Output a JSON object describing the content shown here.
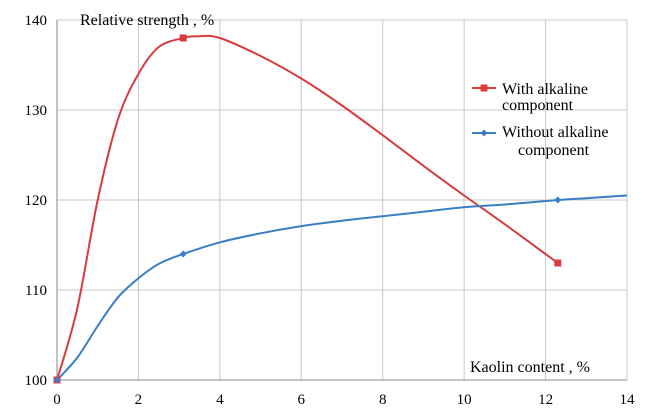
{
  "chart_data": {
    "type": "line",
    "ylabel": "Relative strength , %",
    "xlabel": "Kaolin content , %",
    "xlim": [
      0,
      14
    ],
    "ylim": [
      100,
      140
    ],
    "x_ticks": [
      "0",
      "2",
      "4",
      "6",
      "8",
      "10",
      "12",
      "14"
    ],
    "y_ticks": [
      "100",
      "110",
      "120",
      "130",
      "140"
    ],
    "grid": true,
    "legend_position": "right",
    "series": [
      {
        "name": "With alkaline component",
        "color": "#d83b3b",
        "marker": "square",
        "points": [
          [
            0,
            100
          ],
          [
            3.1,
            138
          ],
          [
            12.3,
            113
          ]
        ],
        "curve": [
          [
            0,
            100
          ],
          [
            0.5,
            108
          ],
          [
            1,
            120
          ],
          [
            1.5,
            129
          ],
          [
            2,
            134
          ],
          [
            2.5,
            137
          ],
          [
            3.1,
            138
          ],
          [
            3.5,
            138.2
          ],
          [
            4,
            138
          ],
          [
            5,
            136
          ],
          [
            6,
            133.5
          ],
          [
            7,
            130.5
          ],
          [
            8,
            127.2
          ],
          [
            9,
            123.8
          ],
          [
            10,
            120.5
          ],
          [
            11,
            117.3
          ],
          [
            12.3,
            113
          ]
        ]
      },
      {
        "name": "Without alkaline component",
        "color": "#3a7fc4",
        "marker": "diamond",
        "points": [
          [
            0,
            100
          ],
          [
            3.1,
            114
          ],
          [
            12.3,
            120
          ]
        ],
        "curve": [
          [
            0,
            100
          ],
          [
            0.5,
            102.5
          ],
          [
            1,
            106
          ],
          [
            1.5,
            109.2
          ],
          [
            2,
            111.3
          ],
          [
            2.5,
            112.9
          ],
          [
            3.1,
            114
          ],
          [
            4,
            115.3
          ],
          [
            5,
            116.3
          ],
          [
            6,
            117.1
          ],
          [
            7,
            117.7
          ],
          [
            8,
            118.2
          ],
          [
            9,
            118.7
          ],
          [
            10,
            119.2
          ],
          [
            11,
            119.5
          ],
          [
            12.3,
            120
          ],
          [
            13,
            120.2
          ],
          [
            14,
            120.5
          ]
        ]
      }
    ]
  }
}
